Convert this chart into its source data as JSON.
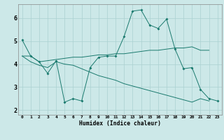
{
  "xlabel": "Humidex (Indice chaleur)",
  "background_color": "#cce8e8",
  "grid_color": "#aad0d0",
  "line_color": "#1a7a6e",
  "xlim": [
    -0.5,
    23.5
  ],
  "ylim": [
    1.8,
    6.6
  ],
  "yticks": [
    2,
    3,
    4,
    5,
    6
  ],
  "xticks": [
    0,
    1,
    2,
    3,
    4,
    5,
    6,
    7,
    8,
    9,
    10,
    11,
    12,
    13,
    14,
    15,
    16,
    17,
    18,
    19,
    20,
    21,
    22,
    23
  ],
  "line1_x": [
    0,
    1,
    2,
    3,
    4,
    5,
    6,
    7,
    8,
    9,
    10,
    11,
    12,
    13,
    14,
    15,
    16,
    17,
    18,
    19,
    20,
    21,
    22,
    23
  ],
  "line1_y": [
    5.05,
    4.35,
    4.1,
    3.6,
    4.15,
    2.35,
    2.5,
    2.4,
    3.85,
    4.3,
    4.35,
    4.35,
    5.2,
    6.3,
    6.35,
    5.7,
    5.55,
    5.95,
    4.65,
    3.8,
    3.85,
    2.9,
    2.5,
    2.4
  ],
  "line2_x": [
    0,
    1,
    2,
    3,
    4,
    5,
    6,
    7,
    8,
    9,
    10,
    11,
    12,
    13,
    14,
    15,
    16,
    17,
    18,
    19,
    20,
    21,
    22
  ],
  "line2_y": [
    4.35,
    4.35,
    4.1,
    4.15,
    4.2,
    4.25,
    4.3,
    4.3,
    4.35,
    4.4,
    4.4,
    4.45,
    4.45,
    4.5,
    4.55,
    4.6,
    4.6,
    4.65,
    4.7,
    4.7,
    4.75,
    4.6,
    4.6
  ],
  "line3_x": [
    0,
    1,
    2,
    3,
    4,
    5,
    6,
    7,
    8,
    9,
    10,
    11,
    12,
    13,
    14,
    15,
    16,
    17,
    18,
    19,
    20,
    21,
    22
  ],
  "line3_y": [
    4.35,
    4.1,
    3.95,
    3.85,
    4.1,
    4.0,
    3.95,
    3.8,
    3.65,
    3.5,
    3.4,
    3.3,
    3.15,
    3.05,
    2.95,
    2.85,
    2.75,
    2.65,
    2.55,
    2.45,
    2.35,
    2.5,
    2.4
  ]
}
